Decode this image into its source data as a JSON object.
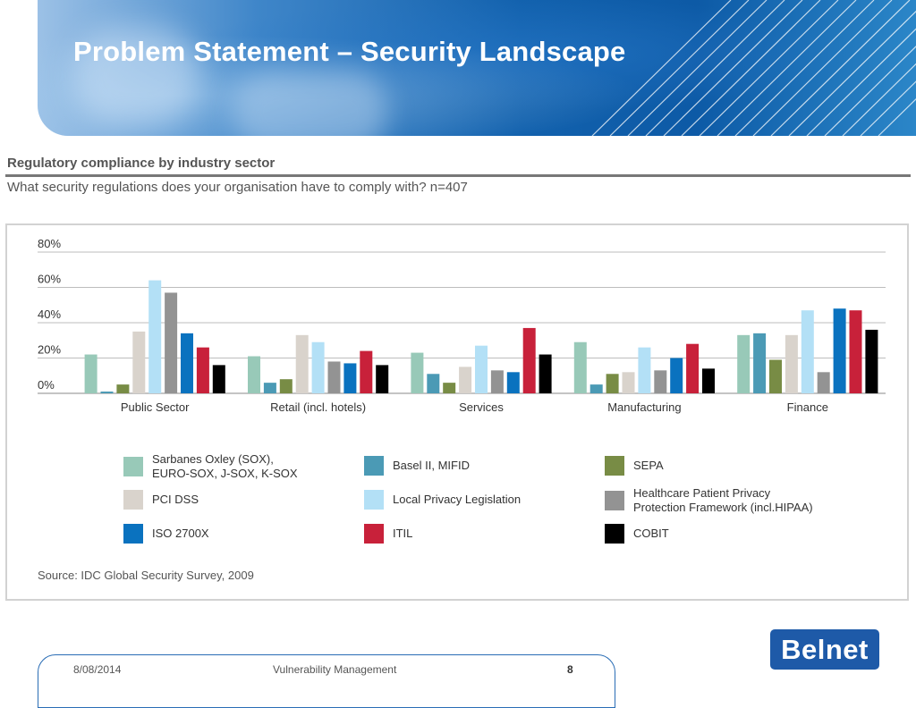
{
  "slide": {
    "title": "Problem Statement – Security Landscape"
  },
  "chart_heading": "Regulatory compliance by industry sector",
  "chart_subheading": "What security regulations does your organisation have to comply with? n=407",
  "chart_data": {
    "type": "bar",
    "title": "Regulatory compliance by industry sector",
    "subtitle": "What security regulations does your organisation have to comply with? n=407",
    "categories": [
      "Public Sector",
      "Retail (incl. hotels)",
      "Services",
      "Manufacturing",
      "Finance"
    ],
    "ylim": [
      0,
      80
    ],
    "yticks": [
      "0%",
      "20%",
      "40%",
      "60%",
      "80%"
    ],
    "ytick_values": [
      0,
      20,
      40,
      60,
      80
    ],
    "grid": true,
    "legend_position": "bottom",
    "series": [
      {
        "name": "Sarbanes Oxley (SOX),\nEURO-SOX, J-SOX, K-SOX",
        "color": "#98c9b8",
        "values": [
          22,
          21,
          23,
          29,
          33
        ]
      },
      {
        "name": "Basel II, MIFID",
        "color": "#4b9ab5",
        "values": [
          1,
          6,
          11,
          5,
          34
        ]
      },
      {
        "name": "SEPA",
        "color": "#788c45",
        "values": [
          5,
          8,
          6,
          11,
          19
        ]
      },
      {
        "name": "PCI DSS",
        "color": "#d9d3cc",
        "values": [
          35,
          33,
          15,
          12,
          33
        ]
      },
      {
        "name": "Local Privacy Legislation",
        "color": "#b3e0f6",
        "values": [
          64,
          29,
          27,
          26,
          47
        ]
      },
      {
        "name": "Healthcare Patient Privacy\nProtection Framework (incl.HIPAA)",
        "color": "#939393",
        "values": [
          57,
          18,
          13,
          13,
          12
        ]
      },
      {
        "name": "ISO 2700X",
        "color": "#0a72bf",
        "values": [
          34,
          17,
          12,
          20,
          48
        ]
      },
      {
        "name": "ITIL",
        "color": "#c8213a",
        "values": [
          26,
          24,
          37,
          28,
          47
        ]
      },
      {
        "name": "COBIT",
        "color": "#000000",
        "values": [
          16,
          16,
          22,
          14,
          36
        ]
      }
    ]
  },
  "source": "Source: IDC Global Security Survey, 2009",
  "footer": {
    "date": "8/08/2014",
    "title": "Vulnerability Management",
    "page": "8"
  },
  "logo_text": "Belnet"
}
